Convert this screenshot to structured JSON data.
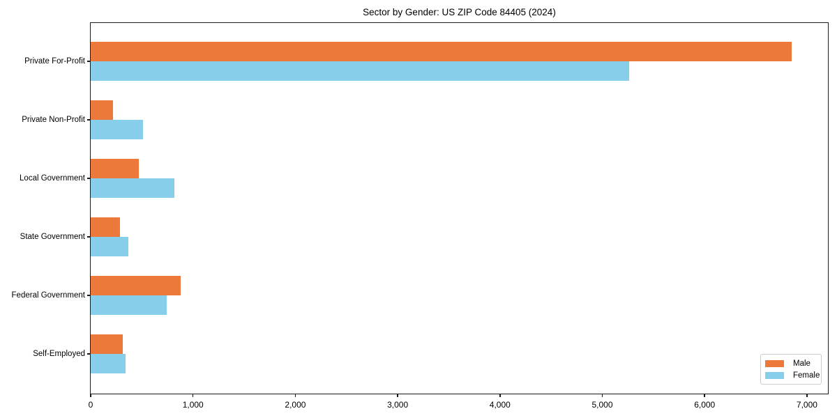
{
  "chart_data": {
    "type": "bar",
    "orientation": "horizontal",
    "title": "Sector by Gender: US ZIP Code 84405 (2024)",
    "categories": [
      "Private For-Profit",
      "Private Non-Profit",
      "Local Government",
      "State Government",
      "Federal Government",
      "Self-Employed"
    ],
    "series": [
      {
        "name": "Male",
        "color": "#EC7839",
        "values": [
          6850,
          220,
          470,
          285,
          880,
          315
        ]
      },
      {
        "name": "Female",
        "color": "#87CEEB",
        "values": [
          5260,
          510,
          815,
          370,
          740,
          340
        ]
      }
    ],
    "xlabel": "",
    "ylabel": "",
    "xlim": [
      0,
      7205
    ],
    "xticks": [
      {
        "value": 0,
        "label": "0"
      },
      {
        "value": 1000,
        "label": "1,000"
      },
      {
        "value": 2000,
        "label": "2,000"
      },
      {
        "value": 3000,
        "label": "3,000"
      },
      {
        "value": 4000,
        "label": "4,000"
      },
      {
        "value": 5000,
        "label": "5,000"
      },
      {
        "value": 6000,
        "label": "6,000"
      },
      {
        "value": 7000,
        "label": "7,000"
      }
    ],
    "grid": false,
    "legend_position": "lower right"
  }
}
